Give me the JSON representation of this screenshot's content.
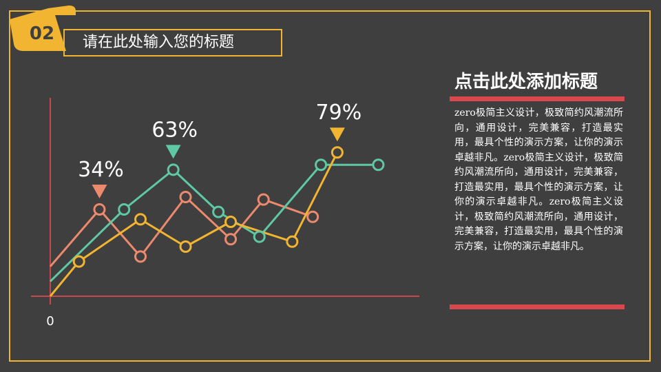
{
  "section": {
    "number": "02",
    "title": "请在此处输入您的标题"
  },
  "side_panel": {
    "heading": "点击此处添加标题",
    "body": "zero极简主义设计，极致简约风潮流所向，通用设计，完美兼容，打造最实用，最具个性的演示方案，让你的演示卓越非凡。zero极简主义设计，极致简约风潮流所向，通用设计，完美兼容，打造最实用，最具个性的演示方案，让你的演示卓越非凡。zero极简主义设计，极致简约风潮流所向，通用设计，完美兼容，打造最实用，最具个性的演示方案，让你的演示卓越非凡。"
  },
  "colors": {
    "background": "#3f3f3f",
    "accent_yellow": "#f2b531",
    "axis_red": "#c9484d",
    "bar_red": "#d9484d",
    "series_salmon": "#ec8a6e",
    "series_teal": "#5ec9a4",
    "series_yellow": "#f2b531"
  },
  "chart_data": {
    "type": "line",
    "origin_label": "0",
    "series": [
      {
        "color": "#ec8a6e",
        "x": [
          0,
          1.2,
          2.2,
          3.3,
          4.4,
          5.2,
          6.4
        ],
        "values": [
          12,
          35,
          16,
          40,
          23,
          39,
          32
        ]
      },
      {
        "color": "#5ec9a4",
        "x": [
          0,
          1.8,
          3.0,
          4.1,
          5.1,
          6.6,
          8.0
        ],
        "values": [
          6,
          35,
          51,
          34,
          24,
          53,
          53
        ]
      },
      {
        "color": "#f2b531",
        "x": [
          0,
          0.7,
          2.2,
          3.3,
          4.4,
          5.9,
          7.0
        ],
        "values": [
          0,
          14,
          31,
          20,
          30,
          22,
          58
        ]
      }
    ],
    "callouts": [
      {
        "label": "34%",
        "series": 0,
        "point": 1
      },
      {
        "label": "63%",
        "series": 1,
        "point": 2
      },
      {
        "label": "79%",
        "series": 2,
        "point": 6
      }
    ],
    "xlim": [
      0,
      9
    ],
    "ylim": [
      0,
      80
    ]
  }
}
